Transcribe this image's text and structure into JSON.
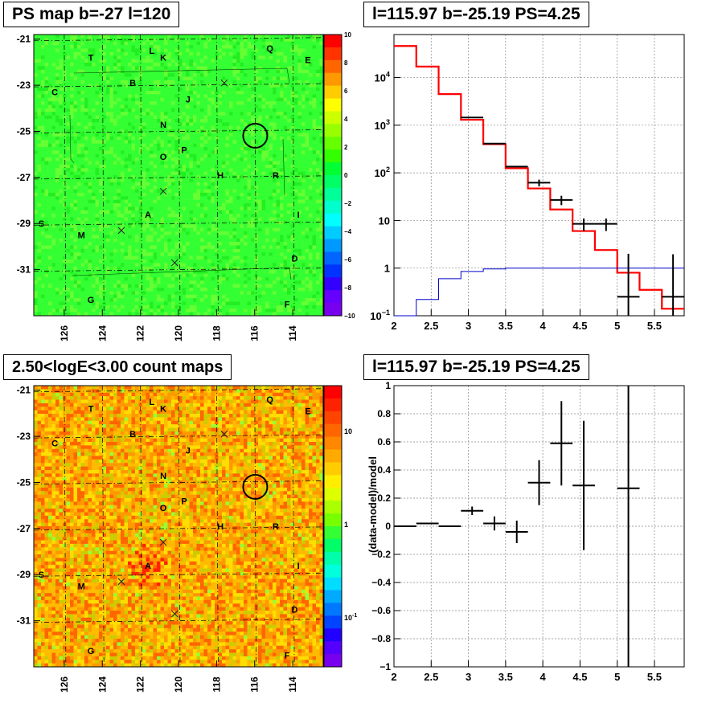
{
  "panels": {
    "tl_title": "PS map b=-27 l=120",
    "tr_title": "l=115.97 b=-25.19 PS=4.25",
    "bl_title": "2.50<logE<3.00 count maps",
    "br_title": "l=115.97 b=-25.19 PS=4.25"
  },
  "sources": [
    {
      "label": "T",
      "l": 124.6,
      "b": -21.8
    },
    {
      "label": "L",
      "l": 121.4,
      "b": -21.5
    },
    {
      "label": "K",
      "l": 120.8,
      "b": -21.8
    },
    {
      "label": "Q",
      "l": 115.2,
      "b": -21.4
    },
    {
      "label": "E",
      "l": 113.2,
      "b": -21.9
    },
    {
      "label": "C",
      "l": 126.5,
      "b": -23.3
    },
    {
      "label": "B",
      "l": 122.4,
      "b": -22.9
    },
    {
      "label": "J",
      "l": 119.5,
      "b": -23.6
    },
    {
      "label": "N",
      "l": 120.8,
      "b": -24.7
    },
    {
      "label": "O",
      "l": 120.8,
      "b": -26.1
    },
    {
      "label": "P",
      "l": 119.7,
      "b": -25.8
    },
    {
      "label": "H",
      "l": 117.8,
      "b": -26.9
    },
    {
      "label": "R",
      "l": 114.9,
      "b": -26.9
    },
    {
      "label": "A",
      "l": 121.6,
      "b": -28.6
    },
    {
      "label": "I",
      "l": 113.7,
      "b": -28.6
    },
    {
      "label": "S",
      "l": 127.2,
      "b": -29.0
    },
    {
      "label": "M",
      "l": 125.1,
      "b": -29.5
    },
    {
      "label": "D",
      "l": 113.9,
      "b": -30.5
    },
    {
      "label": "G",
      "l": 124.6,
      "b": -32.3
    },
    {
      "label": "F",
      "l": 114.3,
      "b": -32.5
    }
  ],
  "crosses": [
    [
      117.6,
      -22.9
    ],
    [
      120.8,
      -27.6
    ],
    [
      123.0,
      -29.3
    ],
    [
      120.2,
      -30.7
    ]
  ],
  "ps_circle": {
    "l": 115.97,
    "b": -25.19
  },
  "chart_data": [
    {
      "type": "heatmap",
      "title": "PS map b=-27 l=120",
      "xticks": [
        "126",
        "124",
        "122",
        "120",
        "118",
        "116",
        "114"
      ],
      "yticks": [
        "-21",
        "-23",
        "-25",
        "-27",
        "-29",
        "-31"
      ],
      "xlim": [
        127.6,
        112.4
      ],
      "ylim": [
        -33.0,
        -20.8
      ],
      "zlim": [
        -10,
        10
      ],
      "zticks": [
        "10",
        "8",
        "6",
        "4",
        "2",
        "0",
        "−2",
        "−4",
        "−6",
        "−8",
        "−10"
      ]
    },
    {
      "type": "line",
      "title": "l=115.97 b=-25.19 PS=4.25",
      "xlim": [
        2,
        5.9
      ],
      "ylim": [
        0.1,
        80000
      ],
      "log_y": true,
      "xticks": [
        "2",
        "2.5",
        "3",
        "3.5",
        "4",
        "4.5",
        "5",
        "5.5"
      ],
      "yticks": [
        {
          "v": 10000,
          "base": "10",
          "exp": "4"
        },
        {
          "v": 1000,
          "base": "10",
          "exp": "3"
        },
        {
          "v": 100,
          "base": "10",
          "exp": "2"
        },
        {
          "v": 10,
          "base": "10",
          "exp": ""
        },
        {
          "v": 1,
          "base": "1",
          "exp": ""
        },
        {
          "v": 0.1,
          "base": "10",
          "exp": "−1"
        }
      ],
      "bin_edges": [
        2,
        2.3,
        2.6,
        2.9,
        3.2,
        3.5,
        3.8,
        4.1,
        4.4,
        4.7,
        5.0,
        5.3,
        5.6,
        5.9
      ],
      "series": [
        {
          "color": "#ff0000",
          "values": [
            46000,
            17000,
            4500,
            1300,
            400,
            125,
            47,
            17,
            6,
            2.4,
            0.8,
            0.35,
            0.14
          ]
        },
        {
          "color": "#0000cc",
          "values": [
            0.1,
            0.22,
            0.6,
            0.85,
            0.96,
            1.0,
            1.0,
            1.0,
            1.0,
            1.0,
            1.0,
            1.0,
            1.0
          ]
        },
        {
          "color": "#000000",
          "values": [
            null,
            null,
            null,
            1450,
            410,
            135,
            62,
            27,
            8.5,
            8.5,
            0.25,
            null,
            0.25
          ],
          "err_hi": [
            null,
            null,
            null,
            null,
            null,
            null,
            72,
            33,
            11,
            11,
            2.0,
            null,
            1.95
          ],
          "err_lo": [
            null,
            null,
            null,
            null,
            null,
            null,
            52,
            21,
            6,
            6,
            0.1,
            null,
            0.1
          ]
        }
      ]
    },
    {
      "type": "heatmap",
      "title": "2.50<logE<3.00 count maps",
      "xticks": [
        "126",
        "124",
        "122",
        "120",
        "118",
        "116",
        "114"
      ],
      "yticks": [
        "-21",
        "-23",
        "-25",
        "-27",
        "-29",
        "-31"
      ],
      "xlim": [
        127.6,
        112.4
      ],
      "ylim": [
        -33.0,
        -20.8
      ],
      "log_z": true,
      "zticks": [
        {
          "v": 10,
          "base": "10",
          "exp": ""
        },
        {
          "v": 1,
          "base": "1",
          "exp": ""
        },
        {
          "v": 0.1,
          "base": "10",
          "exp": "-1"
        }
      ]
    },
    {
      "type": "scatter",
      "title": "l=115.97 b=-25.19 PS=4.25",
      "xlim": [
        2,
        5.9
      ],
      "ylim": [
        -1,
        1
      ],
      "ylabel": "(data-model)/model",
      "xticks": [
        "2",
        "2.5",
        "3",
        "3.5",
        "4",
        "4.5",
        "5",
        "5.5"
      ],
      "yticks": [
        "1",
        "0.8",
        "0.6",
        "0.4",
        "0.2",
        "0",
        "−0.2",
        "−0.4",
        "−0.6",
        "−0.8",
        "−1"
      ],
      "points": [
        {
          "x": 2.15,
          "y": 0.0,
          "dx": 0.15,
          "dy": 0.0
        },
        {
          "x": 2.45,
          "y": 0.02,
          "dx": 0.15,
          "dy": 0.0
        },
        {
          "x": 2.75,
          "y": 0.0,
          "dx": 0.15,
          "dy": 0.0
        },
        {
          "x": 3.05,
          "y": 0.11,
          "dx": 0.15,
          "dy": 0.03
        },
        {
          "x": 3.35,
          "y": 0.02,
          "dx": 0.15,
          "dy": 0.05
        },
        {
          "x": 3.65,
          "y": -0.04,
          "dx": 0.15,
          "dy": 0.08
        },
        {
          "x": 3.95,
          "y": 0.31,
          "dx": 0.15,
          "dy": 0.16
        },
        {
          "x": 4.25,
          "y": 0.59,
          "dx": 0.15,
          "dy": 0.3
        },
        {
          "x": 4.55,
          "y": 0.29,
          "dx": 0.15,
          "dy": 0.46
        },
        {
          "x": 5.15,
          "y": 0.27,
          "dx": 0.15,
          "dy": 1.5
        }
      ]
    }
  ]
}
